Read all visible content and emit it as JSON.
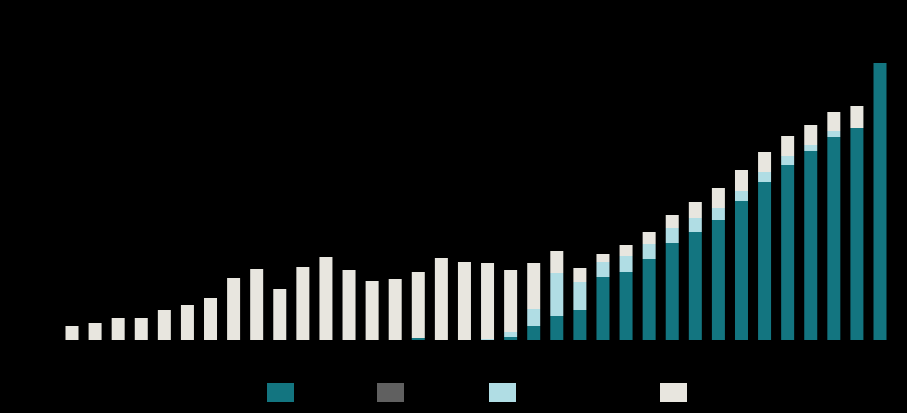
{
  "chart_data": {
    "type": "bar",
    "stacked": true,
    "categories": [
      null,
      null,
      null,
      null,
      null,
      null,
      null,
      null,
      null,
      null,
      null,
      null,
      null,
      null,
      null,
      null,
      null,
      null,
      null,
      null,
      null,
      null,
      null,
      null,
      null,
      null,
      null,
      null,
      null,
      null,
      null,
      null,
      null,
      null,
      null,
      null
    ],
    "ylim": [
      0,
      280
    ],
    "series": [
      {
        "color": "#137580",
        "values": [
          0,
          0,
          0,
          0,
          0,
          0,
          0,
          0,
          0,
          0,
          0,
          0,
          0,
          0,
          0,
          2,
          0,
          0,
          0,
          3,
          14,
          24,
          30,
          63,
          68,
          81,
          97,
          108,
          120,
          139,
          158,
          175,
          189,
          203,
          212,
          277
        ]
      },
      {
        "color": "#606060",
        "values": [
          0,
          0,
          0,
          0,
          0,
          0,
          0,
          0,
          0,
          0,
          0,
          0,
          0,
          0,
          0,
          0,
          0,
          0,
          0,
          0,
          0,
          0,
          0,
          0,
          0,
          0,
          0,
          0,
          0,
          0,
          0,
          0,
          0,
          0,
          0,
          0
        ]
      },
      {
        "color": "#b0dde4",
        "values": [
          0,
          0,
          0,
          0,
          0,
          0,
          0,
          0,
          0,
          0,
          0,
          0,
          0,
          0,
          0,
          0,
          0,
          0,
          1,
          5,
          17,
          43,
          28,
          15,
          16,
          15,
          15,
          14,
          12,
          10,
          10,
          9,
          6,
          6,
          0,
          0
        ]
      },
      {
        "color": "#e8e6df",
        "values": [
          14,
          17,
          22,
          22,
          30,
          35,
          42,
          62,
          71,
          51,
          73,
          83,
          70,
          59,
          61,
          66,
          82,
          78,
          76,
          62,
          46,
          22,
          14,
          8,
          11,
          12,
          13,
          16,
          20,
          21,
          20,
          20,
          20,
          19,
          22,
          0
        ]
      }
    ]
  }
}
